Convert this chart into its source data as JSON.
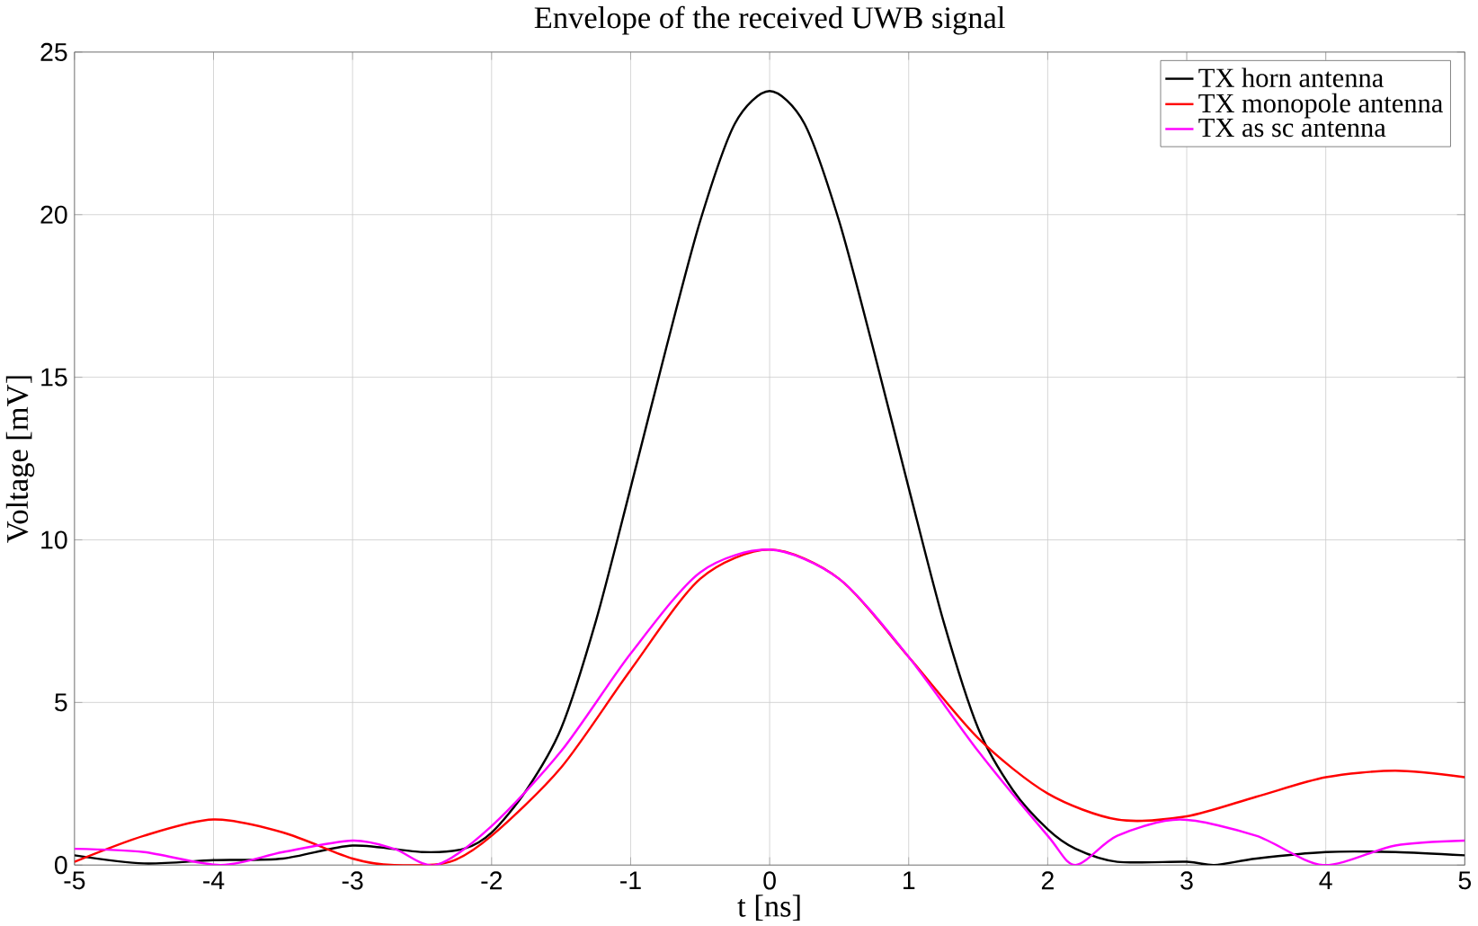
{
  "chart_data": {
    "type": "line",
    "title": "Envelope of the received UWB signal",
    "xlabel": "t [ns]",
    "ylabel": "Voltage [mV]",
    "xlim": [
      -5,
      5
    ],
    "ylim": [
      0,
      25
    ],
    "xticks": [
      -5,
      -4,
      -3,
      -2,
      -1,
      0,
      1,
      2,
      3,
      4,
      5
    ],
    "yticks": [
      0,
      5,
      10,
      15,
      20,
      25
    ],
    "grid": true,
    "legend": "top right",
    "marker": "none",
    "line_style": "solid",
    "series": [
      {
        "name": "TX horn antenna",
        "color": "#000000",
        "x": [
          -5,
          -4.5,
          -4,
          -3.5,
          -3,
          -2.5,
          -2.2,
          -2,
          -1.75,
          -1.5,
          -1.25,
          -1,
          -0.75,
          -0.5,
          -0.25,
          0,
          0.25,
          0.5,
          0.75,
          1,
          1.25,
          1.5,
          1.75,
          2,
          2.2,
          2.5,
          3,
          3.2,
          3.5,
          4,
          4.5,
          5
        ],
        "values": [
          0.3,
          0.05,
          0.15,
          0.2,
          0.6,
          0.4,
          0.5,
          1.0,
          2.3,
          4.2,
          7.5,
          11.6,
          15.8,
          19.8,
          22.8,
          23.8,
          22.8,
          19.8,
          15.8,
          11.6,
          7.5,
          4.2,
          2.3,
          1.1,
          0.5,
          0.1,
          0.1,
          0.0,
          0.2,
          0.4,
          0.4,
          0.3
        ]
      },
      {
        "name": "TX monopole antenna",
        "color": "#ff0000",
        "x": [
          -5,
          -4.5,
          -4,
          -3.5,
          -3,
          -2.7,
          -2.3,
          -2,
          -1.5,
          -1,
          -0.5,
          0,
          0.5,
          1,
          1.5,
          2,
          2.5,
          3,
          3.5,
          4,
          4.5,
          5
        ],
        "values": [
          0.1,
          0.9,
          1.4,
          1.0,
          0.2,
          0.0,
          0.1,
          0.9,
          3.0,
          6.0,
          8.8,
          9.7,
          8.8,
          6.4,
          3.9,
          2.2,
          1.4,
          1.5,
          2.1,
          2.7,
          2.9,
          2.7
        ]
      },
      {
        "name": "TX as sc antenna",
        "color": "#ff00ff",
        "x": [
          -5,
          -4.5,
          -3.95,
          -3.5,
          -3,
          -2.7,
          -2.4,
          -2,
          -1.5,
          -1,
          -0.5,
          0,
          0.5,
          1,
          1.5,
          2,
          2.2,
          2.5,
          2.95,
          3.5,
          3.98,
          4.5,
          5
        ],
        "values": [
          0.5,
          0.4,
          0.0,
          0.4,
          0.75,
          0.5,
          0.0,
          1.2,
          3.5,
          6.5,
          9.0,
          9.7,
          8.8,
          6.4,
          3.5,
          0.9,
          0.0,
          0.9,
          1.4,
          0.9,
          0.0,
          0.6,
          0.75
        ]
      }
    ]
  }
}
